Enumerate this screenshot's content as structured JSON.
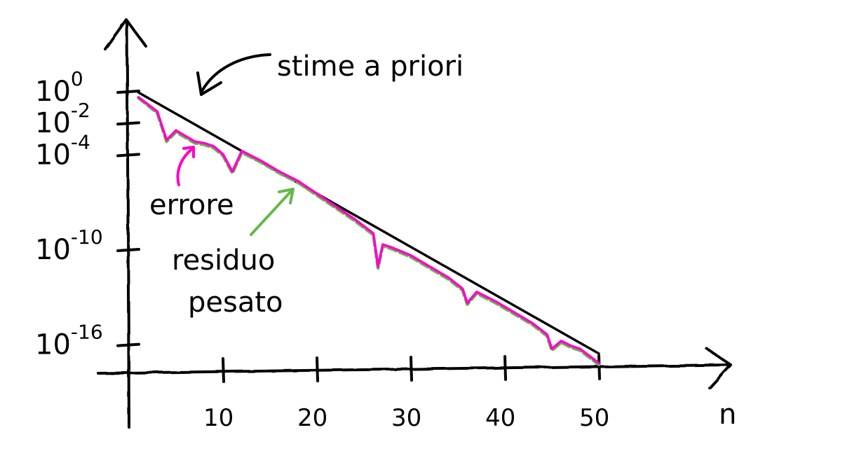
{
  "chart_data": {
    "type": "line",
    "title": "",
    "xlabel": "n",
    "ylabel": "",
    "y_scale": "log",
    "xlim": [
      0,
      60
    ],
    "ylim_exp": [
      -18,
      2
    ],
    "x_ticks": [
      {
        "value": 10,
        "label": "10"
      },
      {
        "value": 20,
        "label": "20"
      },
      {
        "value": 30,
        "label": "30"
      },
      {
        "value": 40,
        "label": "40"
      },
      {
        "value": 50,
        "label": "50"
      }
    ],
    "y_ticks": [
      {
        "exp": 0,
        "label_base": "10",
        "label_exp": "0"
      },
      {
        "exp": -2,
        "label_base": "10",
        "label_exp": "-2"
      },
      {
        "exp": -4,
        "label_base": "10",
        "label_exp": "-4"
      },
      {
        "exp": -10,
        "label_base": "10",
        "label_exp": "-10"
      },
      {
        "exp": -16,
        "label_base": "10",
        "label_exp": "-16"
      }
    ],
    "series": [
      {
        "name": "stima a priori",
        "color": "#000000",
        "dash": "solid",
        "x": [
          1,
          50
        ],
        "y_exp": [
          0,
          -16.5
        ]
      },
      {
        "name": "errore",
        "color": "#ff00cc",
        "dash": "solid",
        "x": [
          1,
          3,
          4,
          5,
          7,
          8,
          9,
          10,
          11,
          12,
          14,
          16,
          18,
          20,
          22,
          24,
          26,
          26.5,
          27,
          28,
          30,
          32,
          34,
          35.5,
          36,
          37,
          39,
          41,
          43,
          44.5,
          45,
          46,
          47,
          48,
          50
        ],
        "y_exp": [
          -0.3,
          -1.2,
          -3.0,
          -2.4,
          -3.1,
          -3.2,
          -3.4,
          -3.9,
          -5.0,
          -3.7,
          -4.3,
          -5.0,
          -5.6,
          -6.4,
          -7.2,
          -8.0,
          -8.9,
          -11.0,
          -9.6,
          -9.8,
          -10.3,
          -11.0,
          -11.7,
          -12.4,
          -13.3,
          -12.6,
          -13.2,
          -13.9,
          -14.6,
          -15.3,
          -16.2,
          -15.7,
          -16.0,
          -16.2,
          -17.1
        ]
      },
      {
        "name": "residuo pesato",
        "color": "#66b84a",
        "dash": "dashed",
        "x": [
          1,
          3,
          4,
          5,
          7,
          8,
          9,
          10,
          11,
          12,
          14,
          16,
          18,
          20,
          22,
          24,
          26,
          26.5,
          27,
          28,
          30,
          32,
          34,
          35.5,
          36,
          37,
          39,
          41,
          43,
          44.5,
          45,
          46,
          47,
          48,
          50
        ],
        "y_exp": [
          -0.35,
          -1.3,
          -3.1,
          -2.5,
          -3.2,
          -3.3,
          -3.5,
          -4.0,
          -5.1,
          -3.8,
          -4.4,
          -5.1,
          -5.7,
          -6.5,
          -7.3,
          -8.1,
          -9.0,
          -11.1,
          -9.7,
          -9.9,
          -10.4,
          -11.1,
          -11.8,
          -12.5,
          -13.4,
          -12.7,
          -13.3,
          -14.0,
          -14.7,
          -15.4,
          -16.3,
          -15.8,
          -16.1,
          -16.3,
          -17.2
        ]
      }
    ],
    "annotations": [
      {
        "text": "stime a priori",
        "target": "stima a priori",
        "color": "#000000"
      },
      {
        "text": "errore",
        "target": "errore",
        "color": "#ff00cc"
      },
      {
        "text": "residuo",
        "target": "residuo pesato",
        "color": "#66b84a"
      },
      {
        "text": "pesato",
        "target": "residuo pesato",
        "color": "#66b84a"
      }
    ]
  }
}
